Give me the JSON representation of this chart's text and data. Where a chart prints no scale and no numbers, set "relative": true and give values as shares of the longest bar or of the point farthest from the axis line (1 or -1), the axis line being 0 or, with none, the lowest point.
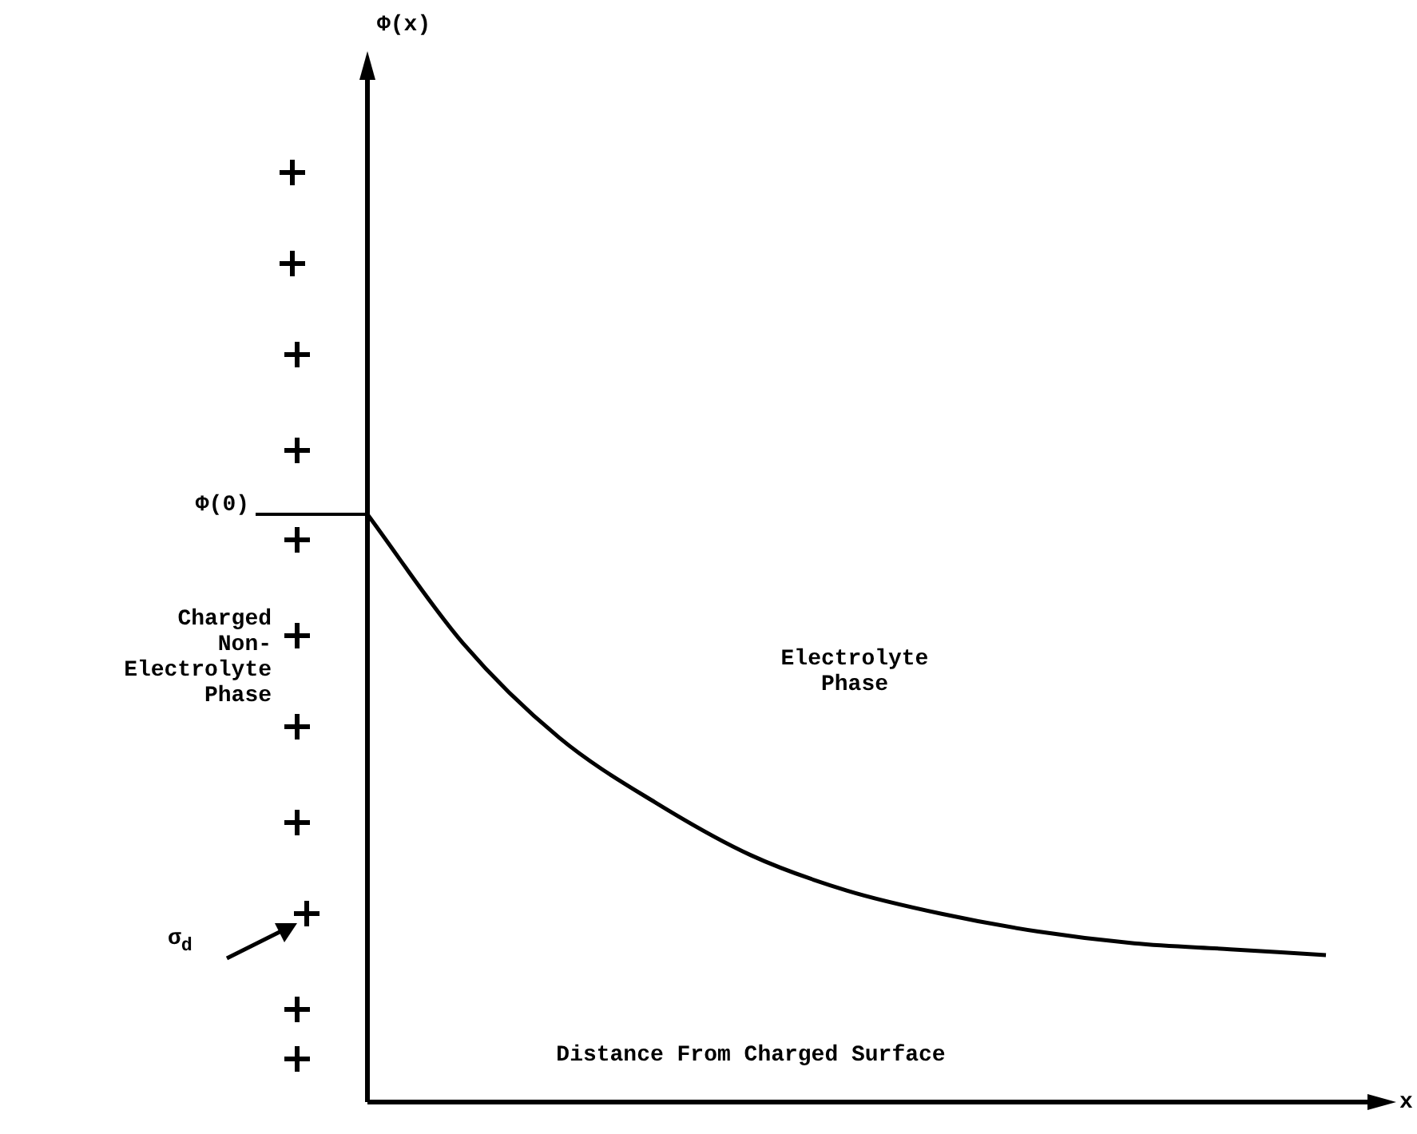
{
  "chart_data": {
    "type": "line",
    "relative": true,
    "xlabel": "x",
    "categories": [
      null,
      null,
      null,
      null,
      null,
      null,
      null,
      null,
      null,
      null,
      null
    ],
    "series": [
      {
        "color": "#000000",
        "values": [
          1.0,
          0.78,
          0.62,
          0.51,
          0.42,
          0.36,
          0.32,
          0.29,
          0.27,
          0.26,
          0.25
        ]
      }
    ],
    "marker": "none",
    "line_style": "solid",
    "legend": false,
    "ref_lines": [
      {
        "axis": "y",
        "value": 1,
        "label": "Φ(0)"
      }
    ],
    "annotations": [
      "Distance From Charged Surface",
      "Charged\nNon-\nElectrolyte\nPhase",
      "Electrolyte\nPhase",
      "σ$_{d}$",
      "Φ(x)"
    ]
  }
}
